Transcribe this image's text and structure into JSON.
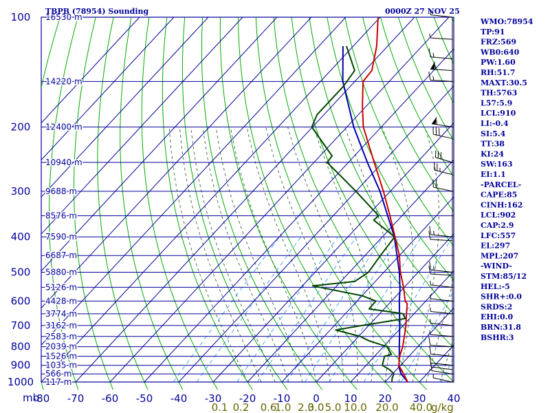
{
  "header": {
    "title": "TBPB (78954) Sounding",
    "datetime": "0000Z 27 NOV 25"
  },
  "colors": {
    "isobar": "#000099",
    "isotherm": "#000099",
    "dry_adiabat": "#00aa00",
    "moist_adiabat": "#336633",
    "mixing_ratio": "#3399ff",
    "temperature": "#cc0000",
    "dewpoint": "#004400",
    "parcel": "#0000aa",
    "mix_label": "#666600",
    "text": "#000099"
  },
  "chart_data": {
    "type": "skew-t",
    "title": "TBPB (78954) Sounding",
    "time": "0000Z 27 NOV 25",
    "pressure_unit": "mb",
    "mixing_ratio_unit": "g/kg",
    "pressure_levels": [
      100,
      150,
      200,
      250,
      300,
      350,
      400,
      450,
      500,
      550,
      600,
      650,
      700,
      750,
      800,
      850,
      900,
      950,
      1000
    ],
    "pressure_tick_labels": [
      100,
      200,
      300,
      400,
      500,
      600,
      700,
      800,
      900,
      1000
    ],
    "temperature_ticks": [
      -80,
      -70,
      -60,
      -50,
      -40,
      -30,
      -20,
      -10,
      0,
      10,
      20,
      30,
      40
    ],
    "temperature_range": [
      -80,
      40
    ],
    "mixing_ratio_labels": [
      "0.1",
      "0.2",
      "0.6",
      "1.0",
      "2.0",
      "3.0",
      "5.0",
      "10.0",
      "20.0",
      "40.0"
    ],
    "mixing_ratio_label_positions_temp": [
      -80.5,
      -74.3,
      -66.3,
      -62.1,
      -55.4,
      -52.5,
      -47.5,
      -41,
      -31.8,
      -21.9
    ],
    "height_labels": [
      {
        "p": 100,
        "text": "16530 m"
      },
      {
        "p": 150,
        "text": "14220 m"
      },
      {
        "p": 200,
        "text": "12400 m"
      },
      {
        "p": 250,
        "text": "10940 m"
      },
      {
        "p": 300,
        "text": "9688 m"
      },
      {
        "p": 350,
        "text": "8576 m"
      },
      {
        "p": 400,
        "text": "7590 m"
      },
      {
        "p": 450,
        "text": "6687 m"
      },
      {
        "p": 500,
        "text": "5880 m"
      },
      {
        "p": 550,
        "text": "5126 m"
      },
      {
        "p": 600,
        "text": "4428 m"
      },
      {
        "p": 650,
        "text": "3774 m"
      },
      {
        "p": 700,
        "text": "3162 m"
      },
      {
        "p": 750,
        "text": "2583 m"
      },
      {
        "p": 800,
        "text": "2039 m"
      },
      {
        "p": 850,
        "text": "1526 m"
      },
      {
        "p": 900,
        "text": "1035 m"
      },
      {
        "p": 950,
        "text": "566 m"
      },
      {
        "p": 1000,
        "text": "117 m"
      }
    ],
    "temperature_profile": [
      {
        "p": 1000,
        "t": 26.6
      },
      {
        "p": 950,
        "t": 23.2
      },
      {
        "p": 925,
        "t": 21.4
      },
      {
        "p": 900,
        "t": 19.5
      },
      {
        "p": 850,
        "t": 17.3
      },
      {
        "p": 800,
        "t": 15.6
      },
      {
        "p": 750,
        "t": 13.3
      },
      {
        "p": 700,
        "t": 10.8
      },
      {
        "p": 650,
        "t": 7.8
      },
      {
        "p": 610,
        "t": 5.3
      },
      {
        "p": 600,
        "t": 4.0
      },
      {
        "p": 550,
        "t": -0.2
      },
      {
        "p": 500,
        "t": -5.2
      },
      {
        "p": 450,
        "t": -10.0
      },
      {
        "p": 400,
        "t": -16.3
      },
      {
        "p": 350,
        "t": -23.5
      },
      {
        "p": 300,
        "t": -32.0
      },
      {
        "p": 250,
        "t": -42.5
      },
      {
        "p": 200,
        "t": -55.2
      },
      {
        "p": 175,
        "t": -61.2
      },
      {
        "p": 150,
        "t": -67.6
      },
      {
        "p": 140,
        "t": -68.0
      },
      {
        "p": 120,
        "t": -73.2
      },
      {
        "p": 100,
        "t": -80.6
      }
    ],
    "dewpoint_profile": [
      {
        "p": 1000,
        "t": 22.0
      },
      {
        "p": 975,
        "t": 21.0
      },
      {
        "p": 950,
        "t": 20.4
      },
      {
        "p": 925,
        "t": 18.0
      },
      {
        "p": 900,
        "t": 14.7
      },
      {
        "p": 850,
        "t": 12.9
      },
      {
        "p": 840,
        "t": 14.4
      },
      {
        "p": 800,
        "t": 11.0
      },
      {
        "p": 770,
        "t": 4.0
      },
      {
        "p": 750,
        "t": 0.5
      },
      {
        "p": 720,
        "t": -8.4
      },
      {
        "p": 700,
        "t": -2.0
      },
      {
        "p": 670,
        "t": 8.8
      },
      {
        "p": 650,
        "t": 6.8
      },
      {
        "p": 630,
        "t": -4.4
      },
      {
        "p": 600,
        "t": -4.5
      },
      {
        "p": 580,
        "t": -10.0
      },
      {
        "p": 545,
        "t": -27.0
      },
      {
        "p": 530,
        "t": -16.0
      },
      {
        "p": 500,
        "t": -14.5
      },
      {
        "p": 450,
        "t": -15.5
      },
      {
        "p": 400,
        "t": -16.4
      },
      {
        "p": 360,
        "t": -27.0
      },
      {
        "p": 350,
        "t": -26.8
      },
      {
        "p": 300,
        "t": -40.0
      },
      {
        "p": 250,
        "t": -56.2
      },
      {
        "p": 240,
        "t": -56.5
      },
      {
        "p": 200,
        "t": -70.2
      },
      {
        "p": 185,
        "t": -72.0
      },
      {
        "p": 155,
        "t": -72.0
      },
      {
        "p": 140,
        "t": -73.0
      },
      {
        "p": 120,
        "t": -82.0
      }
    ],
    "parcel_profile": [
      {
        "p": 1000,
        "t": 26.6
      },
      {
        "p": 950,
        "t": 22.5
      },
      {
        "p": 910,
        "t": 20.0
      },
      {
        "p": 850,
        "t": 17.2
      },
      {
        "p": 800,
        "t": 14.6
      },
      {
        "p": 700,
        "t": 9.0
      },
      {
        "p": 600,
        "t": 2.3
      },
      {
        "p": 557,
        "t": -0.7
      },
      {
        "p": 500,
        "t": -5.5
      },
      {
        "p": 400,
        "t": -16.5
      },
      {
        "p": 300,
        "t": -33.0
      },
      {
        "p": 250,
        "t": -44.5
      },
      {
        "p": 200,
        "t": -58.0
      },
      {
        "p": 150,
        "t": -73.5
      },
      {
        "p": 120,
        "t": -83.0
      }
    ],
    "wind_barbs": [
      {
        "p": 100,
        "dir": 80,
        "kt": 5
      },
      {
        "p": 115,
        "dir": 90,
        "kt": 5
      },
      {
        "p": 130,
        "dir": 95,
        "kt": 15
      },
      {
        "p": 140,
        "dir": 90,
        "kt": 55
      },
      {
        "p": 150,
        "dir": 90,
        "kt": 15
      },
      {
        "p": 200,
        "dir": 110,
        "kt": 55
      },
      {
        "p": 215,
        "dir": 120,
        "kt": 30
      },
      {
        "p": 250,
        "dir": 130,
        "kt": 30
      },
      {
        "p": 270,
        "dir": 125,
        "kt": 25
      },
      {
        "p": 300,
        "dir": 120,
        "kt": 20
      },
      {
        "p": 400,
        "dir": 80,
        "kt": 15
      },
      {
        "p": 410,
        "dir": 90,
        "kt": 10
      },
      {
        "p": 500,
        "dir": 80,
        "kt": 15
      },
      {
        "p": 510,
        "dir": 90,
        "kt": 10
      },
      {
        "p": 550,
        "dir": 100,
        "kt": 5
      },
      {
        "p": 600,
        "dir": 100,
        "kt": 5
      },
      {
        "p": 650,
        "dir": 100,
        "kt": 5
      },
      {
        "p": 700,
        "dir": 100,
        "kt": 5
      },
      {
        "p": 750,
        "dir": 95,
        "kt": 5
      },
      {
        "p": 800,
        "dir": 90,
        "kt": 10
      },
      {
        "p": 850,
        "dir": 80,
        "kt": 10
      },
      {
        "p": 900,
        "dir": 80,
        "kt": 10
      },
      {
        "p": 925,
        "dir": 75,
        "kt": 5
      },
      {
        "p": 950,
        "dir": 70,
        "kt": 5
      },
      {
        "p": 1000,
        "dir": 60,
        "kt": 5
      }
    ]
  },
  "indices": [
    "WMO:78954",
    "TP:91",
    "FRZ:569",
    "WB0:640",
    "PW:1.60",
    "RH:51.7",
    "MAXT:30.5",
    "TH:5763",
    "L57:5.9",
    "LCL:910",
    "LI:-0.4",
    "SI:5.4",
    "TT:38",
    "KI:24",
    "SW:163",
    "EI:1.1",
    "-PARCEL-",
    "CAPE:85",
    "CINH:162",
    "LCL:902",
    "CAP:2.9",
    "LFC:557",
    "EL:297",
    "MPL:207",
    "-WIND-",
    "STM:85/12",
    "HEL:-5",
    "SHR+:0.0",
    "SRDS:2",
    "EHI:0.0",
    "BRN:31.8",
    "BSHR:3"
  ]
}
